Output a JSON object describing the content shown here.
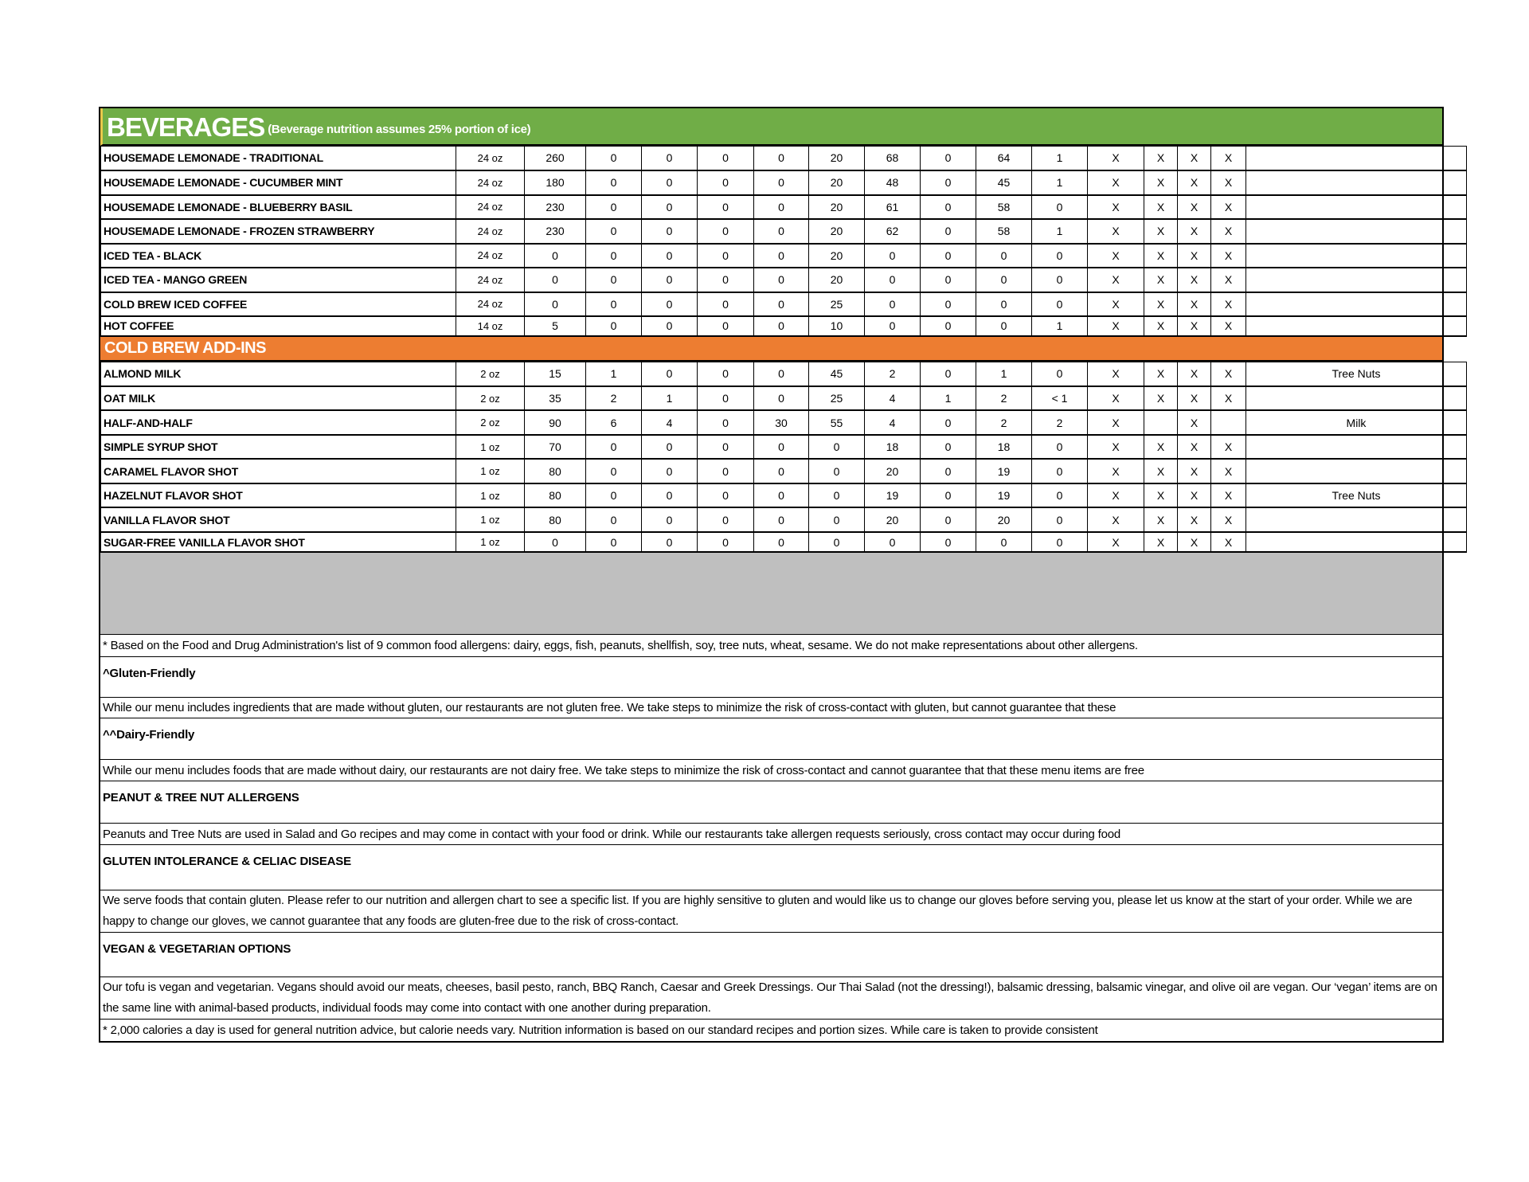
{
  "colors": {
    "beverages_header": "#70ad47",
    "addins_header": "#ed7d31",
    "spacer": "#bfbfbf"
  },
  "beverages": {
    "title": "BEVERAGES",
    "subtitle": "(Beverage nutrition assumes 25% portion of ice)",
    "rows": [
      [
        "HOUSEMADE LEMONADE - TRADITIONAL",
        "24 oz",
        "260",
        "0",
        "0",
        "0",
        "0",
        "20",
        "68",
        "0",
        "64",
        "1",
        "X",
        "X",
        "X",
        "X",
        ""
      ],
      [
        "HOUSEMADE LEMONADE - CUCUMBER MINT",
        "24 oz",
        "180",
        "0",
        "0",
        "0",
        "0",
        "20",
        "48",
        "0",
        "45",
        "1",
        "X",
        "X",
        "X",
        "X",
        ""
      ],
      [
        "HOUSEMADE LEMONADE - BLUEBERRY BASIL",
        "24 oz",
        "230",
        "0",
        "0",
        "0",
        "0",
        "20",
        "61",
        "0",
        "58",
        "0",
        "X",
        "X",
        "X",
        "X",
        ""
      ],
      [
        "HOUSEMADE LEMONADE - FROZEN STRAWBERRY",
        "24 oz",
        "230",
        "0",
        "0",
        "0",
        "0",
        "20",
        "62",
        "0",
        "58",
        "1",
        "X",
        "X",
        "X",
        "X",
        ""
      ],
      [
        "ICED TEA - BLACK",
        "24 oz",
        "0",
        "0",
        "0",
        "0",
        "0",
        "20",
        "0",
        "0",
        "0",
        "0",
        "X",
        "X",
        "X",
        "X",
        ""
      ],
      [
        "ICED TEA - MANGO GREEN",
        "24 oz",
        "0",
        "0",
        "0",
        "0",
        "0",
        "20",
        "0",
        "0",
        "0",
        "0",
        "X",
        "X",
        "X",
        "X",
        ""
      ],
      [
        "COLD BREW ICED COFFEE",
        "24 oz",
        "0",
        "0",
        "0",
        "0",
        "0",
        "25",
        "0",
        "0",
        "0",
        "0",
        "X",
        "X",
        "X",
        "X",
        ""
      ],
      [
        "HOT COFFEE",
        "14 oz",
        "5",
        "0",
        "0",
        "0",
        "0",
        "10",
        "0",
        "0",
        "0",
        "1",
        "X",
        "X",
        "X",
        "X",
        ""
      ]
    ]
  },
  "addins": {
    "title": "COLD BREW ADD-INS",
    "rows": [
      [
        "ALMOND MILK",
        "2 oz",
        "15",
        "1",
        "0",
        "0",
        "0",
        "45",
        "2",
        "0",
        "1",
        "0",
        "X",
        "X",
        "X",
        "X",
        "Tree Nuts"
      ],
      [
        "OAT MILK",
        "2 oz",
        "35",
        "2",
        "1",
        "0",
        "0",
        "25",
        "4",
        "1",
        "2",
        "< 1",
        "X",
        "X",
        "X",
        "X",
        ""
      ],
      [
        "HALF-AND-HALF",
        "2 oz",
        "90",
        "6",
        "4",
        "0",
        "30",
        "55",
        "4",
        "0",
        "2",
        "2",
        "X",
        "",
        "X",
        "",
        "Milk"
      ],
      [
        "SIMPLE SYRUP SHOT",
        "1 oz",
        "70",
        "0",
        "0",
        "0",
        "0",
        "0",
        "18",
        "0",
        "18",
        "0",
        "X",
        "X",
        "X",
        "X",
        ""
      ],
      [
        "CARAMEL FLAVOR SHOT",
        "1 oz",
        "80",
        "0",
        "0",
        "0",
        "0",
        "0",
        "20",
        "0",
        "19",
        "0",
        "X",
        "X",
        "X",
        "X",
        ""
      ],
      [
        "HAZELNUT FLAVOR SHOT",
        "1 oz",
        "80",
        "0",
        "0",
        "0",
        "0",
        "0",
        "19",
        "0",
        "19",
        "0",
        "X",
        "X",
        "X",
        "X",
        "Tree Nuts"
      ],
      [
        "VANILLA FLAVOR SHOT",
        "1 oz",
        "80",
        "0",
        "0",
        "0",
        "0",
        "0",
        "20",
        "0",
        "20",
        "0",
        "X",
        "X",
        "X",
        "X",
        ""
      ],
      [
        "SUGAR-FREE VANILLA FLAVOR SHOT",
        "1 oz",
        "0",
        "0",
        "0",
        "0",
        "0",
        "0",
        "0",
        "0",
        "0",
        "0",
        "X",
        "X",
        "X",
        "X",
        ""
      ]
    ]
  },
  "notes": [
    {
      "type": "text",
      "text": "* Based on the Food and Drug Administration's list of 9 common food allergens: dairy, eggs, fish, peanuts, shellfish, soy, tree nuts, wheat, sesame. We do not make representations about other allergens."
    },
    {
      "type": "head",
      "text": "^Gluten-Friendly"
    },
    {
      "type": "text",
      "text": "While our menu includes ingredients that are made without gluten, our restaurants are not gluten free. We take steps to minimize the risk of cross-contact with gluten, but cannot guarantee that these"
    },
    {
      "type": "head",
      "text": "^^Dairy-Friendly"
    },
    {
      "type": "text",
      "text": "While our menu includes foods that are made without dairy, our restaurants are not dairy free. We take steps to minimize the risk of cross-contact and cannot guarantee that that these menu items are free"
    },
    {
      "type": "head",
      "text": "PEANUT & TREE NUT ALLERGENS"
    },
    {
      "type": "text",
      "text": "Peanuts and Tree Nuts are used in Salad and Go recipes and may come in contact with your food or drink. While our restaurants take allergen requests seriously, cross contact may occur during food"
    },
    {
      "type": "head",
      "text": "GLUTEN INTOLERANCE & CELIAC DISEASE"
    },
    {
      "type": "wrap",
      "text": "We serve foods that contain gluten. Please refer to our nutrition and allergen chart to see a specific list. If you are highly sensitive to gluten and would like us to change our gloves before serving you, please let us know at the start of your order.  While we are happy to change our gloves, we cannot guarantee that any foods are gluten-free due to the risk of cross-contact."
    },
    {
      "type": "head",
      "text": "VEGAN & VEGETARIAN OPTIONS"
    },
    {
      "type": "wrap",
      "text": "Our tofu is vegan and vegetarian. Vegans should avoid our meats, cheeses, basil pesto, ranch, BBQ Ranch, Caesar and Greek Dressings. Our Thai Salad (not the dressing!), balsamic dressing, balsamic vinegar, and olive oil are vegan. Our ‘vegan’ items are on the same line with animal-based products, individual foods may come into contact with one another during preparation."
    },
    {
      "type": "text",
      "text": "* 2,000 calories a day is used for general nutrition advice, but calorie needs vary. Nutrition information is based on our standard recipes and portion sizes. While care is taken to provide consistent"
    }
  ]
}
